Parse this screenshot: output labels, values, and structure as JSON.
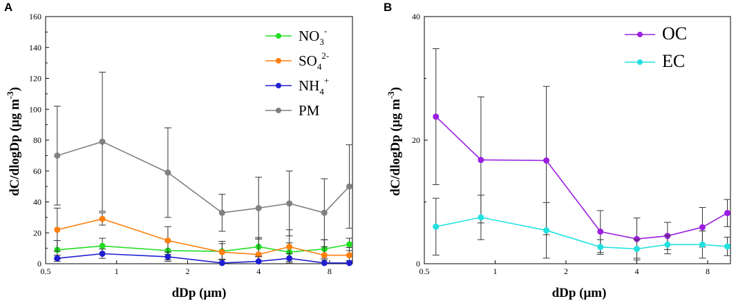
{
  "chart_data": [
    {
      "panel": "A",
      "type": "line",
      "xscale": "log",
      "xlabel": "dDp (μm)",
      "ylabel": "dC/dlogDp (μg m",
      "ylabel_sup": "-3",
      "ylabel_close": ")",
      "xlim": [
        0.5,
        10
      ],
      "ylim": [
        0,
        160
      ],
      "xticks": [
        {
          "v": 0.5,
          "label": "0.5"
        },
        {
          "v": 1,
          "label": "1"
        },
        {
          "v": 2,
          "label": "2"
        },
        {
          "v": 4,
          "label": "4"
        },
        {
          "v": 8,
          "label": "8"
        }
      ],
      "yticks": [
        0,
        20,
        40,
        60,
        80,
        100,
        120,
        140,
        160
      ],
      "x": [
        0.56,
        0.87,
        1.65,
        2.8,
        4.0,
        5.4,
        7.6,
        9.7
      ],
      "series": [
        {
          "name": "NO3-",
          "legend_base": "NO",
          "legend_sub": "3",
          "legend_sup": "-",
          "color": "#22dd22",
          "values": [
            9,
            11.5,
            8.5,
            8,
            11,
            7.5,
            9.5,
            12.5
          ],
          "err": [
            6,
            5,
            6,
            5,
            6,
            6,
            6,
            4
          ]
        },
        {
          "name": "SO42-",
          "legend_base": "SO",
          "legend_sub": "4",
          "legend_sup": "2-",
          "color": "#ff7f0e",
          "values": [
            22,
            29,
            15,
            7.5,
            6,
            11,
            5.5,
            5.5
          ],
          "err": [
            14,
            4,
            9,
            7,
            10,
            11,
            10,
            5
          ]
        },
        {
          "name": "NH4+",
          "legend_base": "NH",
          "legend_sub": "4",
          "legend_sup": "+",
          "color": "#1f1fd0",
          "values": [
            3.5,
            6.5,
            4.5,
            0.5,
            1.5,
            3.5,
            0.5,
            0.5
          ],
          "err": [
            2,
            3,
            3,
            2,
            3,
            3,
            2,
            1.5
          ]
        },
        {
          "name": "PM",
          "legend_base": "PM",
          "legend_sub": "",
          "legend_sup": "",
          "color": "#808080",
          "values": [
            70,
            79,
            59,
            33,
            36,
            39,
            33,
            50
          ],
          "err": [
            32,
            45,
            29,
            12,
            20,
            21,
            22,
            27
          ]
        }
      ]
    },
    {
      "panel": "B",
      "type": "line",
      "xscale": "log",
      "xlabel": "dDp (μm)",
      "ylabel": "dC/dlogDp (μg m",
      "ylabel_sup": "-3",
      "ylabel_close": ")",
      "xlim": [
        0.5,
        10
      ],
      "ylim": [
        0,
        40
      ],
      "xticks": [
        {
          "v": 0.5,
          "label": "0.5"
        },
        {
          "v": 1,
          "label": "1"
        },
        {
          "v": 2,
          "label": "2"
        },
        {
          "v": 4,
          "label": "4"
        },
        {
          "v": 8,
          "label": "8"
        }
      ],
      "yticks": [
        0,
        20,
        40
      ],
      "x": [
        0.56,
        0.87,
        1.65,
        2.8,
        4.0,
        5.4,
        7.6,
        9.7
      ],
      "series": [
        {
          "name": "OC",
          "legend_base": "OC",
          "legend_sub": "",
          "legend_sup": "",
          "color": "#9b1fe0",
          "values": [
            23.8,
            16.8,
            16.7,
            5.2,
            4.0,
            4.5,
            5.9,
            8.2
          ],
          "err": [
            11,
            10.2,
            12,
            3.4,
            3.4,
            2.2,
            3.2,
            2.2
          ]
        },
        {
          "name": "EC",
          "legend_base": "EC",
          "legend_sub": "",
          "legend_sup": "",
          "color": "#22e0e0",
          "values": [
            6.0,
            7.5,
            5.4,
            2.7,
            2.4,
            3.1,
            3.1,
            2.8
          ],
          "err": [
            4.6,
            3.6,
            4.5,
            1.2,
            1.5,
            1.5,
            2.2,
            1.5
          ]
        }
      ]
    }
  ]
}
